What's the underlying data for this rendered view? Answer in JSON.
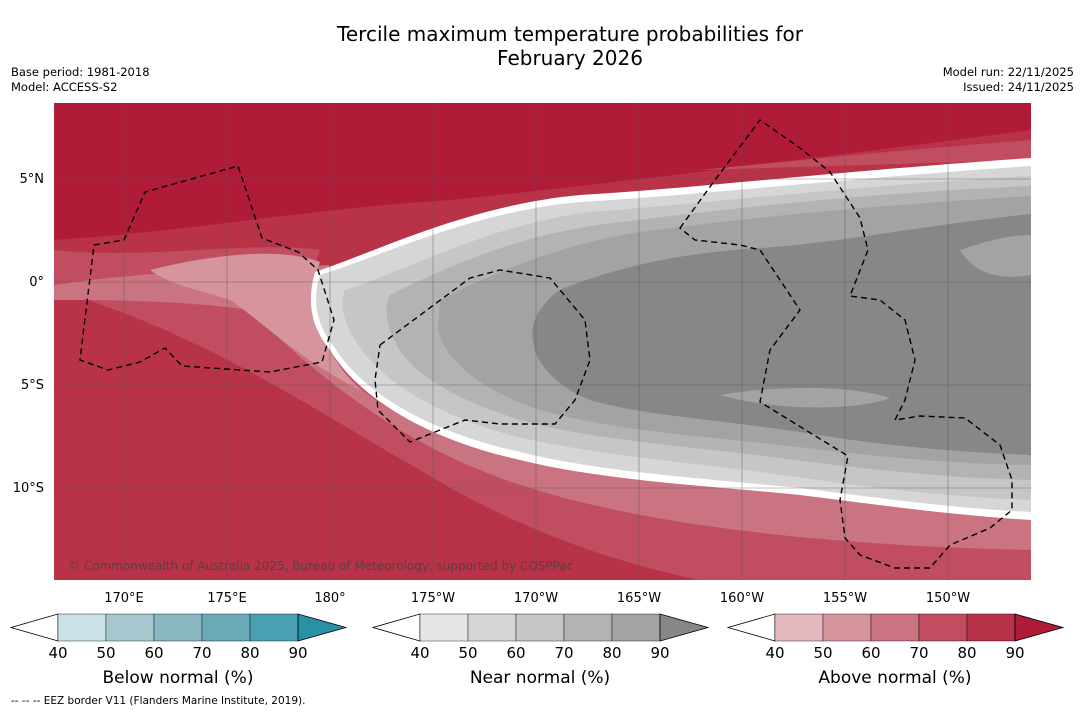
{
  "title_line1": "Tercile maximum temperature probabilities for",
  "title_line2": "February 2026",
  "base_period": "Base period: 1981-2018",
  "model": "Model: ACCESS-S2",
  "model_run": "Model run: 22/11/2025",
  "issued": "Issued: 24/11/2025",
  "copyright": "© Commonwealth of Australia 2025, Bureau of Meteorology, supported by COSPPac",
  "footnote": "--  --  -- EEZ border V11 (Flanders Marine Institute, 2019).",
  "lat_labels": [
    "5°N",
    "0°",
    "5°S",
    "10°S"
  ],
  "lon_labels": [
    "170°E",
    "175°E",
    "180°",
    "175°W",
    "170°W",
    "165°W",
    "160°W",
    "155°W",
    "150°W"
  ],
  "legends": {
    "below": {
      "title": "Below normal (%)",
      "ticks": [
        "40",
        "50",
        "60",
        "70",
        "80",
        "90"
      ],
      "colors": [
        "#ffffff",
        "#c9e1e7",
        "#a8c8cf",
        "#8ab6c1",
        "#6aa9b6",
        "#4aa0b0",
        "#2a90a6"
      ]
    },
    "near": {
      "title": "Near normal (%)",
      "ticks": [
        "40",
        "50",
        "60",
        "70",
        "80",
        "90"
      ],
      "colors": [
        "#ffffff",
        "#e6e6e6",
        "#d6d6d6",
        "#c6c6c6",
        "#b3b3b3",
        "#a3a3a3",
        "#878787"
      ]
    },
    "above": {
      "title": "Above normal (%)",
      "ticks": [
        "40",
        "50",
        "60",
        "70",
        "80",
        "90"
      ],
      "colors": [
        "#ffffff",
        "#e3b8bf",
        "#d6949d",
        "#c97480",
        "#c04e60",
        "#b83248",
        "#b01c38"
      ]
    }
  }
}
